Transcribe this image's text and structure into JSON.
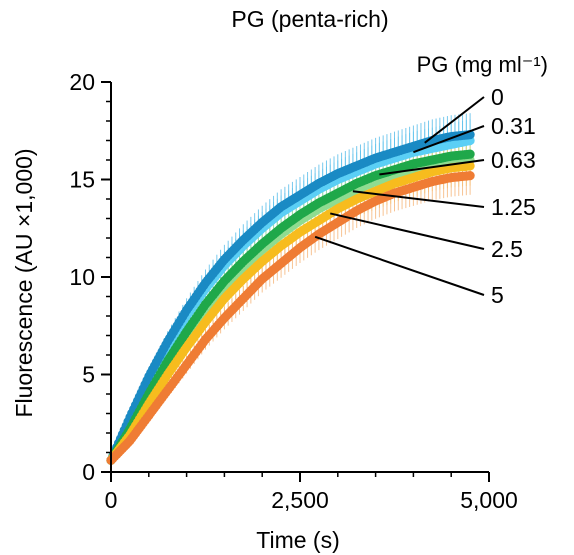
{
  "chart_data": {
    "type": "scatter",
    "title": "PG (penta-rich)",
    "xlabel": "Time (s)",
    "ylabel": "Fluorescence (AU ×1,000)",
    "legend_title": "PG (mg ml⁻¹)",
    "legend_placement": "right, labels with leader lines",
    "xlim": [
      0,
      5000
    ],
    "ylim": [
      0,
      20
    ],
    "xticks": [
      0,
      2500,
      5000
    ],
    "xtick_labels": [
      "0",
      "2,500",
      "5,000"
    ],
    "yticks": [
      0,
      5,
      10,
      15,
      20
    ],
    "ytick_labels": [
      "0",
      "5",
      "10",
      "15",
      "20"
    ],
    "grid": false,
    "error_bars": true,
    "x": [
      0,
      250,
      500,
      750,
      1000,
      1250,
      1500,
      1750,
      2000,
      2250,
      2500,
      2750,
      3000,
      3250,
      3500,
      3750,
      4000,
      4250,
      4500,
      4750
    ],
    "series": [
      {
        "name": "0",
        "color": "#1a8ac4",
        "error_color": "#4bb8e8",
        "values": [
          0.6,
          2.8,
          4.9,
          6.7,
          8.3,
          9.7,
          10.9,
          11.9,
          12.8,
          13.6,
          14.2,
          14.8,
          15.3,
          15.7,
          16.1,
          16.4,
          16.7,
          17.0,
          17.2,
          17.3
        ]
      },
      {
        "name": "0.31",
        "color": "#5bcff5",
        "error_color": "#8adcf7",
        "values": [
          0.6,
          2.6,
          4.6,
          6.4,
          8.0,
          9.4,
          10.6,
          11.6,
          12.5,
          13.3,
          13.9,
          14.5,
          15.0,
          15.4,
          15.8,
          16.1,
          16.4,
          16.6,
          16.8,
          17.0
        ]
      },
      {
        "name": "0.63",
        "color": "#1fa84a",
        "error_color": "#9fdc9a",
        "values": [
          0.6,
          2.2,
          4.0,
          5.7,
          7.2,
          8.6,
          9.8,
          10.8,
          11.7,
          12.5,
          13.2,
          13.8,
          14.3,
          14.8,
          15.2,
          15.5,
          15.8,
          16.0,
          16.2,
          16.3
        ]
      },
      {
        "name": "1.25",
        "color": "#8fdc90",
        "error_color": "#c4ecbf",
        "values": [
          0.6,
          2.1,
          3.8,
          5.4,
          6.9,
          8.3,
          9.5,
          10.5,
          11.4,
          12.2,
          12.9,
          13.5,
          14.0,
          14.5,
          14.9,
          15.2,
          15.5,
          15.7,
          15.9,
          16.0
        ]
      },
      {
        "name": "2.5",
        "color": "#f7bc1e",
        "error_color": "#f9d878",
        "values": [
          0.6,
          1.9,
          3.5,
          5.0,
          6.4,
          7.7,
          8.9,
          9.9,
          10.8,
          11.6,
          12.3,
          12.9,
          13.5,
          14.0,
          14.4,
          14.8,
          15.1,
          15.4,
          15.6,
          15.7
        ]
      },
      {
        "name": "5",
        "color": "#ef7c34",
        "error_color": "#f5b070",
        "values": [
          0.6,
          1.6,
          2.9,
          4.2,
          5.5,
          6.8,
          7.9,
          8.9,
          9.9,
          10.7,
          11.5,
          12.2,
          12.8,
          13.4,
          13.9,
          14.3,
          14.6,
          14.9,
          15.1,
          15.2
        ]
      }
    ]
  }
}
